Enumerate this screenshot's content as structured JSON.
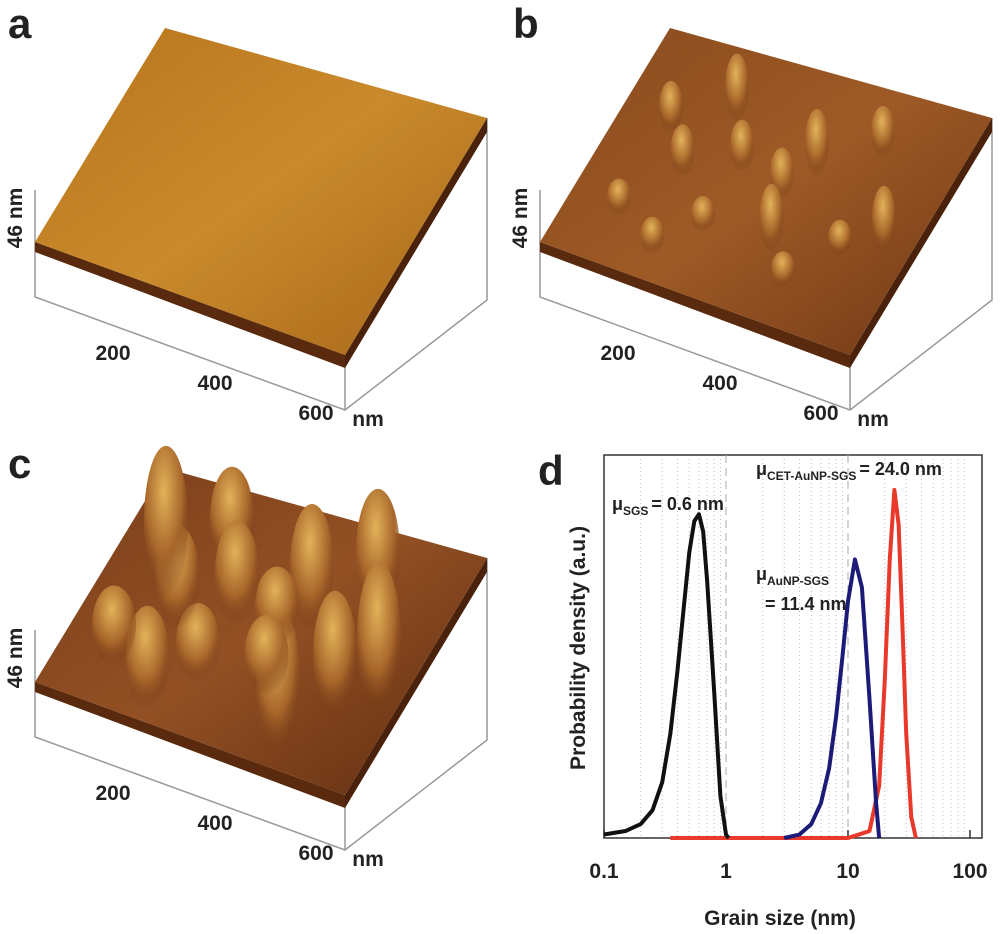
{
  "panels": [
    {
      "letter": "a",
      "z_label": "46 nm",
      "ticks": [
        "200",
        "400",
        "600"
      ],
      "unit": "nm"
    },
    {
      "letter": "b",
      "z_label": "46 nm",
      "ticks": [
        "200",
        "400",
        "600"
      ],
      "unit": "nm"
    },
    {
      "letter": "c",
      "z_label": "46 nm",
      "ticks": [
        "200",
        "400",
        "600"
      ],
      "unit": "nm"
    }
  ],
  "chart_data": {
    "type": "line",
    "letter": "d",
    "x_label": "Grain size (nm)",
    "y_label": "Probability density (a.u.)",
    "log_x": true,
    "grid": true,
    "xlim": [
      0.1,
      100
    ],
    "xticks": [
      0.1,
      1,
      10,
      100
    ],
    "ylim": [
      0,
      1.1
    ],
    "series": [
      {
        "name": "SGS",
        "color": "#111111",
        "x": [
          0.1,
          0.15,
          0.2,
          0.25,
          0.3,
          0.35,
          0.4,
          0.45,
          0.5,
          0.55,
          0.6,
          0.65,
          0.7,
          0.8,
          0.9,
          1.0,
          1.05
        ],
        "values": [
          0.01,
          0.02,
          0.04,
          0.08,
          0.16,
          0.3,
          0.48,
          0.66,
          0.82,
          0.91,
          0.93,
          0.88,
          0.74,
          0.42,
          0.12,
          0.01,
          0
        ]
      },
      {
        "name": "AuNP-SGS",
        "color": "#1c1c78",
        "x": [
          3,
          4,
          5,
          6,
          7,
          8,
          9,
          10,
          11.4,
          13,
          15,
          17,
          18
        ],
        "values": [
          0,
          0.01,
          0.04,
          0.1,
          0.2,
          0.35,
          0.52,
          0.68,
          0.8,
          0.72,
          0.4,
          0.1,
          0
        ]
      },
      {
        "name": "CET-AuNP-SGS",
        "color": "#e8392b",
        "x": [
          0.35,
          1,
          3,
          10,
          15,
          18,
          20,
          22,
          24,
          26,
          28,
          30,
          33,
          36
        ],
        "values": [
          0,
          0,
          0,
          0,
          0.02,
          0.15,
          0.45,
          0.8,
          1.0,
          0.9,
          0.6,
          0.3,
          0.06,
          0
        ]
      }
    ],
    "annotations": [
      {
        "symbol": "μ",
        "subscript": "SGS",
        "text": "= 0.6 nm"
      },
      {
        "symbol": "μ",
        "subscript": "AuNP-SGS",
        "text": "= 11.4 nm"
      },
      {
        "symbol": "μ",
        "subscript": "CET-AuNP-SGS",
        "text": "= 24.0 nm"
      }
    ]
  }
}
